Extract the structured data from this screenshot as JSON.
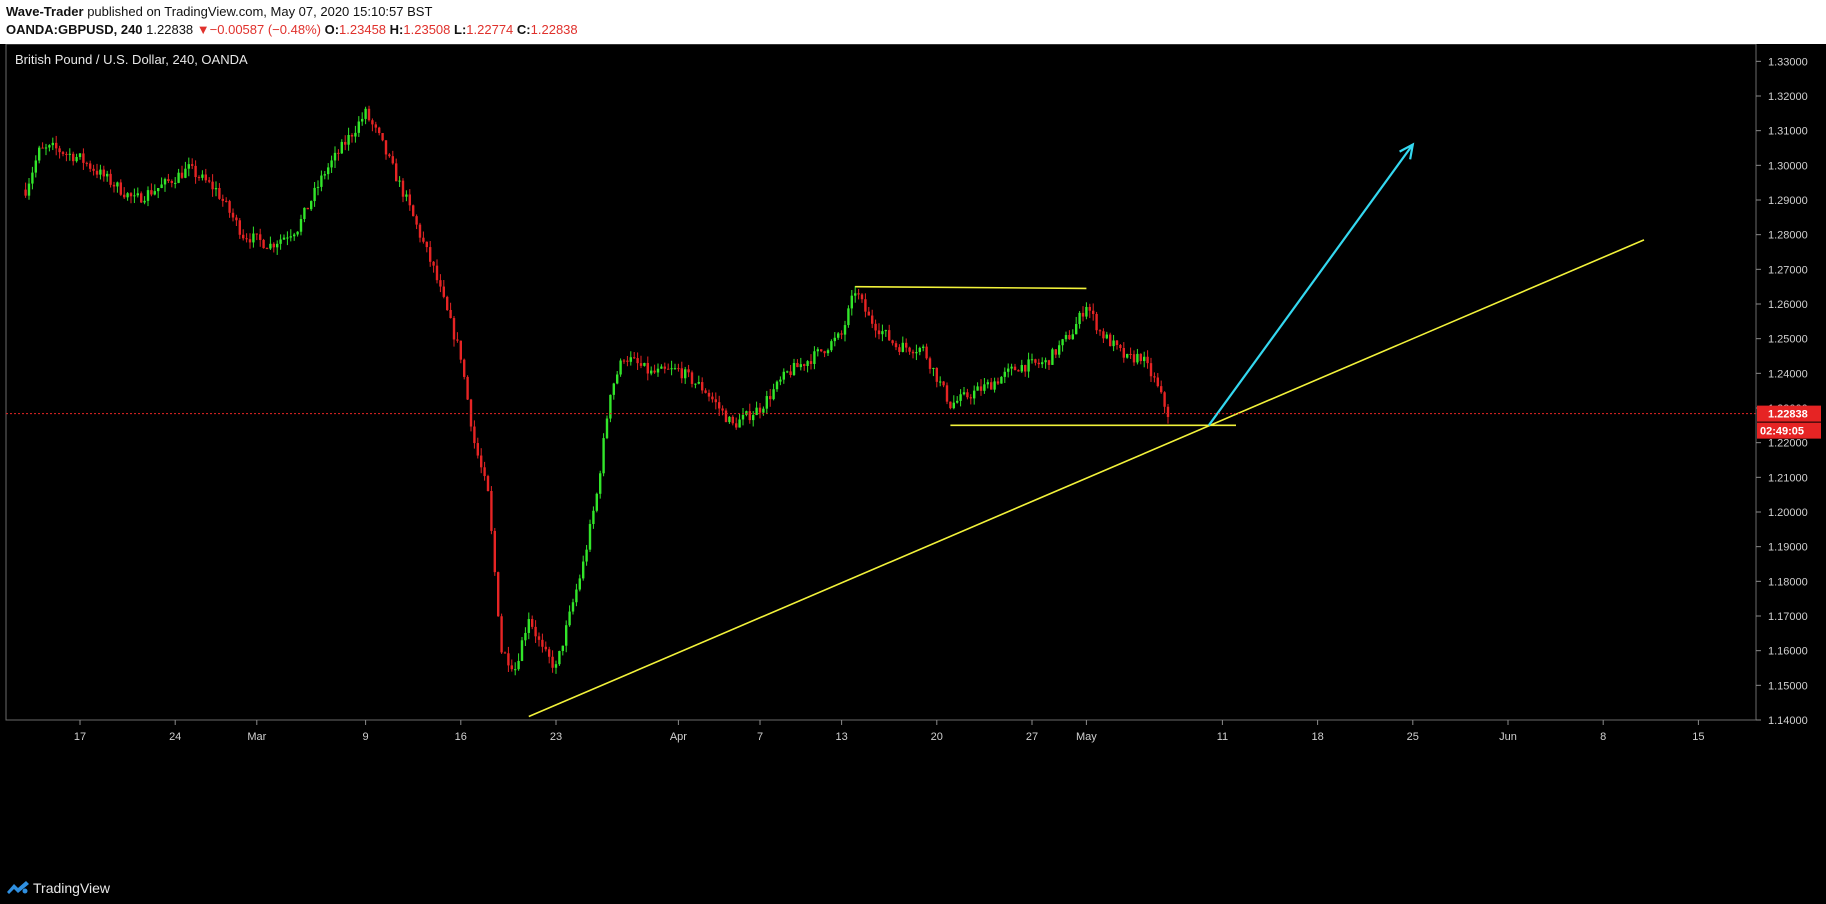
{
  "header": {
    "author": "Wave-Trader",
    "published_text": "published on TradingView.com, May 07, 2020 15:10:57 BST",
    "symbol": "OANDA:GBPUSD, 240",
    "last_price": "1.22838",
    "change_arrow": "▼",
    "change": "−0.00587 (−0.48%)",
    "open_label": "O:",
    "open": "1.23458",
    "high_label": "H:",
    "high": "1.23508",
    "low_label": "L:",
    "low": "1.22774",
    "close_label": "C:",
    "close": "1.22838"
  },
  "footer": {
    "brand": "TradingView"
  },
  "colors": {
    "background": "#000000",
    "up_candle": "#32e62a",
    "down_candle": "#e62424",
    "trendline": "#f2f23a",
    "arrow": "#34d8f0",
    "price_line": "#e62424"
  },
  "chart_data": {
    "type": "candlestick",
    "title": "British Pound / U.S. Dollar, 240, OANDA",
    "ylim": [
      1.14,
      1.335
    ],
    "y_ticks": [
      "1.33000",
      "1.32000",
      "1.31000",
      "1.30000",
      "1.29000",
      "1.28000",
      "1.27000",
      "1.26000",
      "1.25000",
      "1.24000",
      "1.23000",
      "1.22000",
      "1.21000",
      "1.20000",
      "1.19000",
      "1.18000",
      "1.17000",
      "1.16000",
      "1.15000",
      "1.14000"
    ],
    "x_ticks": [
      "17",
      "24",
      "Mar",
      "9",
      "16",
      "23",
      "Apr",
      "7",
      "13",
      "20",
      "27",
      "May",
      "11",
      "18",
      "25",
      "Jun",
      "8",
      "15"
    ],
    "price_path": [
      [
        "2020-02-13",
        1.293
      ],
      [
        "2020-02-14",
        1.304
      ],
      [
        "2020-02-15",
        1.305
      ],
      [
        "2020-02-17",
        1.302
      ],
      [
        "2020-02-19",
        1.296
      ],
      [
        "2020-02-21",
        1.29
      ],
      [
        "2020-02-23",
        1.294
      ],
      [
        "2020-02-25",
        1.299
      ],
      [
        "2020-02-27",
        1.293
      ],
      [
        "2020-02-29",
        1.28
      ],
      [
        "2020-03-02",
        1.277
      ],
      [
        "2020-03-04",
        1.282
      ],
      [
        "2020-03-06",
        1.298
      ],
      [
        "2020-03-09",
        1.315
      ],
      [
        "2020-03-10",
        1.308
      ],
      [
        "2020-03-12",
        1.29
      ],
      [
        "2020-03-14",
        1.27
      ],
      [
        "2020-03-16",
        1.245
      ],
      [
        "2020-03-17",
        1.22
      ],
      [
        "2020-03-18",
        1.205
      ],
      [
        "2020-03-19",
        1.16
      ],
      [
        "2020-03-20",
        1.155
      ],
      [
        "2020-03-21",
        1.17
      ],
      [
        "2020-03-22",
        1.16
      ],
      [
        "2020-03-23",
        1.155
      ],
      [
        "2020-03-24",
        1.17
      ],
      [
        "2020-03-25",
        1.185
      ],
      [
        "2020-03-26",
        1.205
      ],
      [
        "2020-03-27",
        1.235
      ],
      [
        "2020-03-28",
        1.245
      ],
      [
        "2020-03-30",
        1.24
      ],
      [
        "2020-04-01",
        1.241
      ],
      [
        "2020-04-03",
        1.235
      ],
      [
        "2020-04-05",
        1.225
      ],
      [
        "2020-04-07",
        1.23
      ],
      [
        "2020-04-09",
        1.24
      ],
      [
        "2020-04-11",
        1.245
      ],
      [
        "2020-04-13",
        1.251
      ],
      [
        "2020-04-14",
        1.264
      ],
      [
        "2020-04-15",
        1.256
      ],
      [
        "2020-04-17",
        1.248
      ],
      [
        "2020-04-19",
        1.247
      ],
      [
        "2020-04-21",
        1.231
      ],
      [
        "2020-04-22",
        1.233
      ],
      [
        "2020-04-24",
        1.237
      ],
      [
        "2020-04-26",
        1.242
      ],
      [
        "2020-04-28",
        1.243
      ],
      [
        "2020-04-30",
        1.252
      ],
      [
        "2020-05-01",
        1.26
      ],
      [
        "2020-05-02",
        1.252
      ],
      [
        "2020-05-04",
        1.244
      ],
      [
        "2020-05-05",
        1.245
      ],
      [
        "2020-05-06",
        1.238
      ],
      [
        "2020-05-07",
        1.2284
      ]
    ],
    "last_price_line": 1.22838,
    "last_price_label": "1.22838",
    "countdown_label": "02:49:05",
    "drawings": [
      {
        "type": "trendline",
        "from": [
          "2020-03-21",
          1.141
        ],
        "to": [
          "2020-06-11",
          1.2785
        ]
      },
      {
        "type": "horizontal_segment",
        "from": [
          "2020-04-14",
          1.265
        ],
        "to": [
          "2020-05-01",
          1.2645
        ]
      },
      {
        "type": "horizontal_segment",
        "from": [
          "2020-04-21",
          1.225
        ],
        "to": [
          "2020-05-12",
          1.225
        ]
      },
      {
        "type": "arrow",
        "from": [
          "2020-05-10",
          1.225
        ],
        "to": [
          "2020-05-25",
          1.306
        ]
      }
    ]
  }
}
